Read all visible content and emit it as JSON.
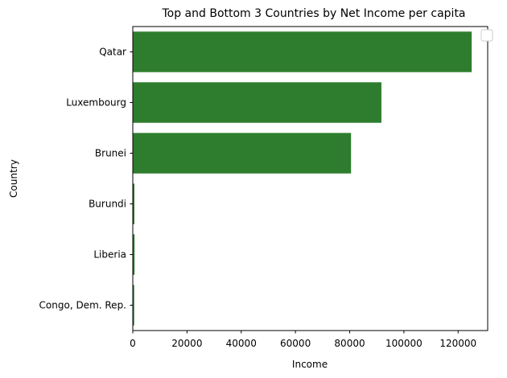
{
  "chart_data": {
    "type": "bar",
    "orientation": "horizontal",
    "title": "Top and Bottom 3 Countries by Net Income per capita",
    "xlabel": "Income",
    "ylabel": "Country",
    "categories": [
      "Qatar",
      "Luxembourg",
      "Brunei",
      "Burundi",
      "Liberia",
      "Congo, Dem. Rep."
    ],
    "values": [
      125000,
      91700,
      80500,
      600,
      650,
      520
    ],
    "xlim": [
      0,
      130900
    ],
    "xticks": [
      0,
      20000,
      40000,
      60000,
      80000,
      100000,
      120000
    ],
    "bar_color": "#2e7d2e",
    "grid": false,
    "legend": {
      "placement": "top-right",
      "entries": []
    }
  }
}
